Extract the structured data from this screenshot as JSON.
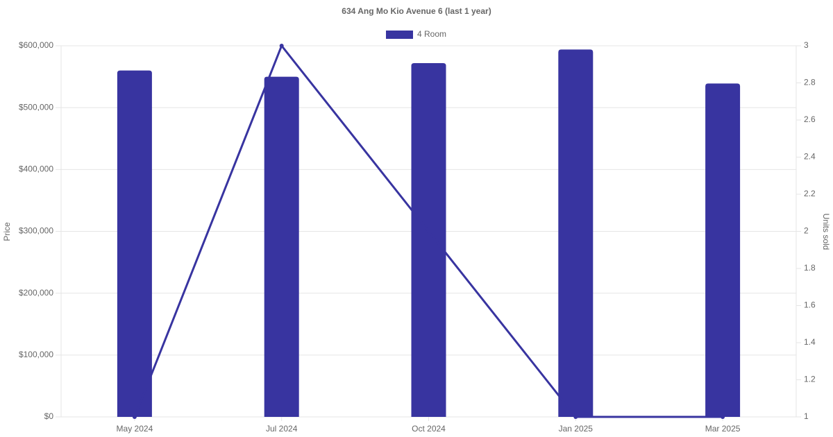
{
  "chart_data": {
    "type": "bar-line",
    "title": "634 Ang Mo Kio Avenue 6 (last 1 year)",
    "categories": [
      "May 2024",
      "Jul 2024",
      "Oct 2024",
      "Jan 2025",
      "Mar 2025"
    ],
    "series": [
      {
        "name": "4 Room",
        "type": "bar",
        "color": "#3834a0",
        "values": [
          560000,
          550000,
          572000,
          594000,
          539000
        ]
      },
      {
        "type": "line",
        "axis": "y2",
        "color": "#3834a0",
        "values": [
          1,
          3,
          2,
          1,
          1
        ]
      }
    ],
    "ylabel": "Price",
    "y2label": "Units sold",
    "ylim": [
      0,
      600000
    ],
    "yticks": [
      {
        "value": 0,
        "label": "$0"
      },
      {
        "value": 100000,
        "label": "$100,000"
      },
      {
        "value": 200000,
        "label": "$200,000"
      },
      {
        "value": 300000,
        "label": "$300,000"
      },
      {
        "value": 400000,
        "label": "$400,000"
      },
      {
        "value": 500000,
        "label": "$500,000"
      },
      {
        "value": 600000,
        "label": "$600,000"
      }
    ],
    "y2lim": [
      1,
      3
    ],
    "y2ticks": [
      1,
      1.2,
      1.4,
      1.6,
      1.8,
      2,
      2.2,
      2.4,
      2.6,
      2.8,
      3
    ],
    "grid": true,
    "legend": "top"
  }
}
